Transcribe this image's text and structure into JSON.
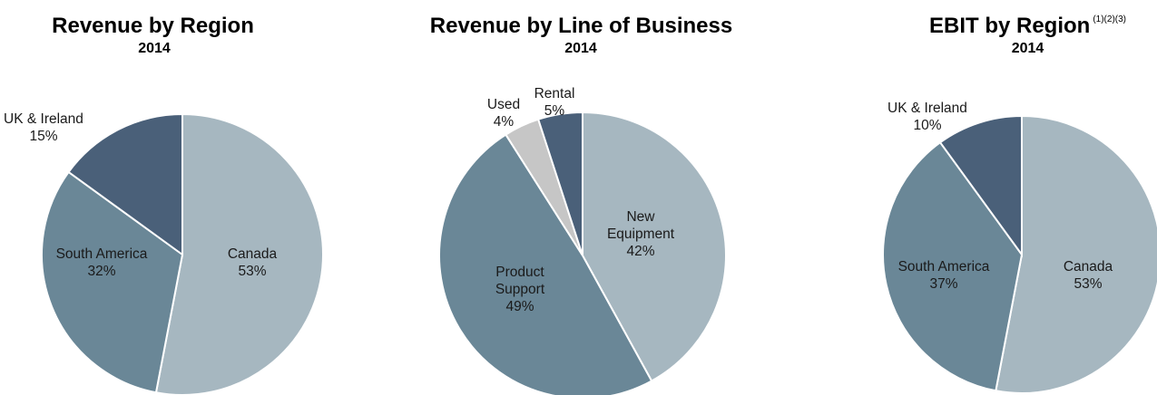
{
  "chart_data": [
    {
      "type": "pie",
      "title": "Revenue by Region",
      "subtitle": "2014",
      "footnote": "",
      "slices": [
        {
          "label": [
            "Canada"
          ],
          "pct": "53%",
          "value": 53,
          "color": "#a6b7c0"
        },
        {
          "label": [
            "South America"
          ],
          "pct": "32%",
          "value": 32,
          "color": "#6a8797"
        },
        {
          "label": [
            "UK & Ireland"
          ],
          "pct": "15%",
          "value": 15,
          "color": "#4a6079"
        }
      ]
    },
    {
      "type": "pie",
      "title": "Revenue by Line of Business",
      "subtitle": "2014",
      "footnote": "",
      "slices": [
        {
          "label": [
            "New",
            "Equipment"
          ],
          "pct": "42%",
          "value": 42,
          "color": "#a6b7c0"
        },
        {
          "label": [
            "Product",
            "Support"
          ],
          "pct": "49%",
          "value": 49,
          "color": "#6a8797"
        },
        {
          "label": [
            "Used"
          ],
          "pct": "4%",
          "value": 4,
          "color": "#c6c6c6"
        },
        {
          "label": [
            "Rental"
          ],
          "pct": "5%",
          "value": 5,
          "color": "#4a6079"
        }
      ]
    },
    {
      "type": "pie",
      "title": "EBIT by Region",
      "subtitle": "2014",
      "footnote": "(1)(2)(3)",
      "slices": [
        {
          "label": [
            "Canada"
          ],
          "pct": "53%",
          "value": 53,
          "color": "#a6b7c0"
        },
        {
          "label": [
            "South America"
          ],
          "pct": "37%",
          "value": 37,
          "color": "#6a8797"
        },
        {
          "label": [
            "UK & Ireland"
          ],
          "pct": "10%",
          "value": 10,
          "color": "#4a6079"
        }
      ]
    }
  ]
}
